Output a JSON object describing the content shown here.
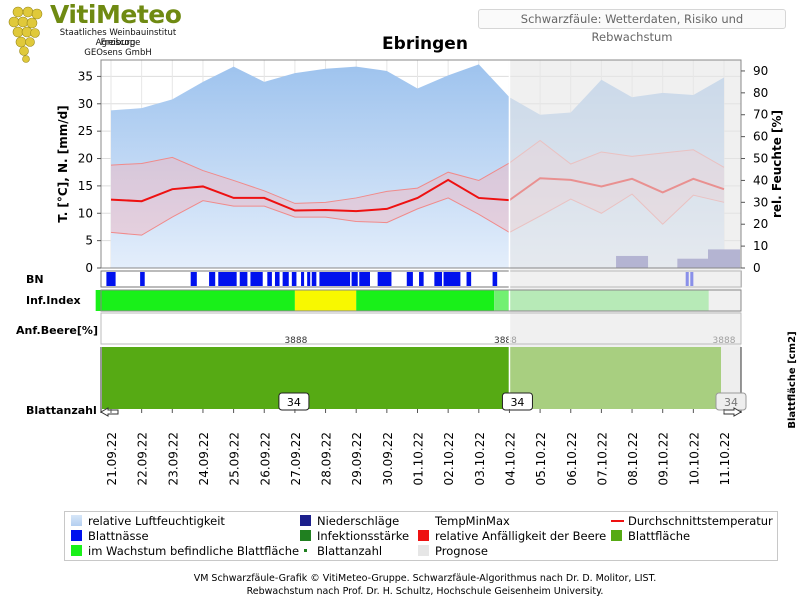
{
  "header": {
    "logo_title": "VitiMeteo",
    "logo_lines": [
      "Staatliches Weinbauinstitut Freiburg",
      "Agroscope",
      "GEOsens GmbH"
    ],
    "subtitle": "Schwarzfäule: Wetterdaten, Risiko und Rebwachstum",
    "station": "Ebringen"
  },
  "credits": [
    "VM Schwarzfäule-Grafik © VitiMeteo-Gruppe. Schwarzfäule-Algorithmus nach Dr. D. Molitor, LIST.",
    "Rebwachstum nach Prof. Dr. H. Schultz, Hochschule Geisenheim University."
  ],
  "legend": [
    {
      "label": "relative Luftfeuchtigkeit",
      "color": "#c9ddf5"
    },
    {
      "label": "Niederschläge",
      "color": "#1c1f8c"
    },
    {
      "label": "TempMinMax",
      "color": ""
    },
    {
      "label": "Durchschnittstemperatur",
      "color": "#ee1111"
    },
    {
      "label": "Blattnässe",
      "color": "#0011ee"
    },
    {
      "label": "Infektionsstärke",
      "color": "#208020"
    },
    {
      "label": "relative Anfälligkeit der Beere",
      "color": "#ee1111"
    },
    {
      "label": "Blattfläche",
      "color": "#56aa14"
    },
    {
      "label": "im Wachstum befindliche Blattfläche",
      "color": "#19f019"
    },
    {
      "label": "Blattanzahl",
      "color": "#208020"
    },
    {
      "label": "Prognose",
      "color": "#e6e6e6"
    }
  ],
  "chart_data": {
    "type": "line",
    "x": [
      "21.09.22",
      "22.09.22",
      "23.09.22",
      "24.09.22",
      "25.09.22",
      "26.09.22",
      "27.09.22",
      "28.09.22",
      "29.09.22",
      "30.09.22",
      "01.10.22",
      "02.10.22",
      "03.10.22",
      "04.10.22",
      "05.10.22",
      "06.10.22",
      "07.10.22",
      "08.10.22",
      "09.10.22",
      "10.10.22",
      "11.10.22"
    ],
    "forecast_from": "04.10.22",
    "y_left_label": "T. [°C], N. [mm/d]",
    "y_left_ticks": [
      0,
      5,
      10,
      15,
      20,
      25,
      30,
      35
    ],
    "y_left_lim": [
      0,
      38
    ],
    "y_right_label": "rel. Feuchte [%]",
    "y_right_ticks": [
      0,
      10,
      20,
      30,
      40,
      50,
      60,
      70,
      80,
      90
    ],
    "y_right_lim": [
      0,
      95
    ],
    "series": [
      {
        "name": "relative Luftfeuchtigkeit",
        "type": "area",
        "axis": "right",
        "color": "#a9c9ee",
        "values": [
          72,
          73,
          77,
          85,
          92,
          85,
          89,
          91,
          92,
          90,
          82,
          88,
          93,
          78,
          70,
          71,
          86,
          78,
          80,
          79,
          87
        ]
      },
      {
        "name": "Durchschnittstemperatur",
        "type": "line",
        "axis": "left",
        "color": "#ee1111",
        "values": [
          12.5,
          12.2,
          14.4,
          14.9,
          12.8,
          12.8,
          10.5,
          10.6,
          10.4,
          10.8,
          12.8,
          16.1,
          12.8,
          12.4,
          16.4,
          16.1,
          14.9,
          16.3,
          13.8,
          16.3,
          14.4
        ]
      },
      {
        "name": "TempMax",
        "type": "band-upper",
        "axis": "left",
        "color": "#f09090",
        "values": [
          18.8,
          19.1,
          20.2,
          17.8,
          16.0,
          14.1,
          11.8,
          12.0,
          12.8,
          14.0,
          14.6,
          17.5,
          16.0,
          19.2,
          23.3,
          19.0,
          21.2,
          20.4,
          21.0,
          21.6,
          18.4
        ]
      },
      {
        "name": "TempMin",
        "type": "band-lower",
        "axis": "left",
        "color": "#f09090",
        "values": [
          6.5,
          6.0,
          9.3,
          12.3,
          11.3,
          11.3,
          9.3,
          9.3,
          8.5,
          8.3,
          10.8,
          12.8,
          9.8,
          6.5,
          9.5,
          12.6,
          10.0,
          13.5,
          8.0,
          13.3,
          12.0
        ]
      },
      {
        "name": "Niederschläge",
        "type": "bar",
        "axis": "left",
        "color": "#6a6ab4",
        "values": [
          0,
          0,
          0,
          0,
          0,
          0,
          0,
          0,
          0,
          0,
          0,
          0,
          0,
          0,
          0,
          0,
          0,
          2.2,
          0,
          1.7,
          3.4
        ]
      }
    ],
    "rows": {
      "bn_label": "BN",
      "inf_label": "Inf.Index",
      "beere_label": "Anf.Beere[%]",
      "blattanzahl_label": "Blattanzahl",
      "blattflaeche_label": "Blattfläche [cm2]",
      "beere_values": [
        "3888",
        "3888",
        "3888"
      ],
      "blattanzahl_values": [
        "34",
        "34",
        "34"
      ],
      "inf_segments": [
        {
          "from": 0,
          "to": 6.5,
          "level": "gering",
          "color": "#19f019"
        },
        {
          "from": 6.5,
          "to": 8.5,
          "level": "mittel",
          "color": "#f8f800"
        },
        {
          "from": 8.5,
          "to": 13,
          "level": "gering",
          "color": "#19f019"
        },
        {
          "from": 13,
          "to": 20,
          "level": "gering-prognose",
          "color": "#72f072"
        }
      ],
      "bn_segments": [
        [
          0.35,
          0.65
        ],
        [
          1.45,
          1.6
        ],
        [
          3.1,
          3.3
        ],
        [
          3.7,
          3.9
        ],
        [
          4.0,
          4.6
        ],
        [
          4.7,
          4.95
        ],
        [
          5.05,
          5.45
        ],
        [
          5.6,
          5.75
        ],
        [
          5.85,
          6.0
        ],
        [
          6.1,
          6.3
        ],
        [
          6.4,
          6.55
        ],
        [
          6.7,
          6.8
        ],
        [
          6.9,
          7.0
        ],
        [
          7.05,
          7.2
        ],
        [
          7.3,
          8.3
        ],
        [
          8.35,
          8.55
        ],
        [
          8.6,
          8.95
        ],
        [
          9.2,
          9.65
        ],
        [
          10.15,
          10.35
        ],
        [
          10.55,
          10.7
        ],
        [
          11.05,
          11.3
        ],
        [
          11.35,
          11.9
        ],
        [
          12.1,
          12.25
        ],
        [
          12.95,
          13.1
        ],
        [
          19.25,
          19.35
        ],
        [
          19.4,
          19.5
        ]
      ]
    },
    "grid": true
  }
}
